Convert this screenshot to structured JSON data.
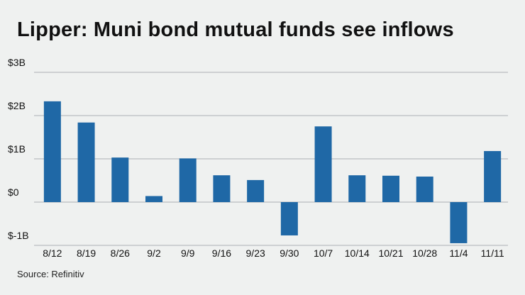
{
  "title": "Lipper: Muni bond mutual funds see inflows",
  "source": "Source: Refinitiv",
  "chart_data": {
    "type": "bar",
    "title": "Lipper: Muni bond mutual funds see inflows",
    "categories": [
      "8/12",
      "8/19",
      "8/26",
      "9/2",
      "9/9",
      "9/16",
      "9/23",
      "9/30",
      "10/7",
      "10/14",
      "10/21",
      "10/28",
      "11/4",
      "11/11"
    ],
    "values": [
      2.33,
      1.84,
      1.03,
      0.14,
      1.01,
      0.62,
      0.51,
      -0.77,
      1.75,
      0.62,
      0.61,
      0.59,
      -0.95,
      1.18
    ],
    "yticks": [
      {
        "value": 3,
        "label": "$3B"
      },
      {
        "value": 2,
        "label": "$2B"
      },
      {
        "value": 1,
        "label": "$1B"
      },
      {
        "value": 0,
        "label": "$0"
      },
      {
        "value": -1,
        "label": "$-1B"
      }
    ],
    "ylim": [
      -1,
      3
    ],
    "unit": "billions of dollars",
    "grid": true,
    "colors": {
      "bar": "#1f68a6",
      "grid": "#b9bdbf",
      "background": "#eff1f0"
    }
  }
}
